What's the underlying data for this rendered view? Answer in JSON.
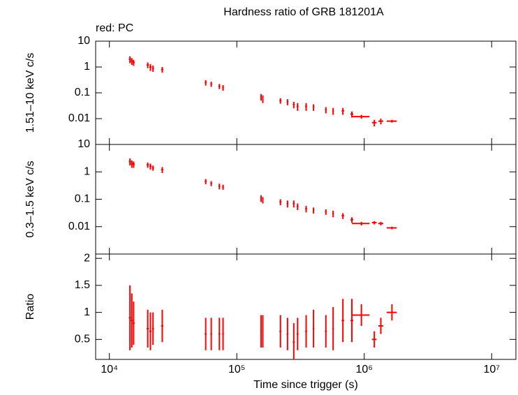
{
  "chart_data": [
    {
      "type": "scatter",
      "title": "Hardness ratio of GRB 181201A",
      "annotation": "red: PC",
      "ylabel": "1.51–10 keV c/s",
      "log_x": true,
      "log_y": true,
      "ylim": [
        0.001,
        10
      ],
      "yticks": [
        0.01,
        0.1,
        1,
        10
      ],
      "series": [
        {
          "color": "#ff0000",
          "x": [
            14500,
            15000,
            15500,
            20000,
            21000,
            22000,
            26000,
            57000,
            63000,
            73000,
            78000,
            155000,
            160000,
            220000,
            250000,
            280000,
            300000,
            350000,
            400000,
            500000,
            570000,
            680000,
            800000,
            950000,
            1200000,
            1350000,
            1650000
          ],
          "xerr": [
            300,
            300,
            300,
            400,
            400,
            400,
            500,
            1000,
            1000,
            1200,
            1200,
            2000,
            2000,
            4000,
            4000,
            5000,
            5000,
            6000,
            6000,
            8000,
            8000,
            15000,
            20000,
            150000,
            50000,
            60000,
            150000
          ],
          "values": [
            2.0,
            1.7,
            1.5,
            1.2,
            1.0,
            0.9,
            0.8,
            0.25,
            0.22,
            0.18,
            0.16,
            0.07,
            0.06,
            0.05,
            0.045,
            0.035,
            0.03,
            0.03,
            0.028,
            0.022,
            0.02,
            0.02,
            0.015,
            0.012,
            0.007,
            0.008,
            0.008
          ],
          "errors": [
            0.6,
            0.5,
            0.4,
            0.3,
            0.3,
            0.25,
            0.2,
            0.06,
            0.05,
            0.04,
            0.04,
            0.02,
            0.02,
            0.012,
            0.012,
            0.01,
            0.01,
            0.01,
            0.008,
            0.006,
            0.006,
            0.006,
            0.004,
            0.002,
            0.002,
            0.002,
            0.001
          ]
        }
      ]
    },
    {
      "type": "scatter",
      "ylabel": "0.3–1.5 keV c/s",
      "log_x": true,
      "log_y": true,
      "ylim": [
        0.001,
        10
      ],
      "yticks": [
        0.01,
        0.1,
        1,
        10
      ],
      "series": [
        {
          "color": "#ff0000",
          "x": [
            14500,
            15000,
            15500,
            20000,
            21000,
            22000,
            26000,
            57000,
            63000,
            73000,
            78000,
            155000,
            160000,
            220000,
            250000,
            280000,
            300000,
            350000,
            400000,
            500000,
            570000,
            680000,
            800000,
            950000,
            1200000,
            1350000,
            1650000
          ],
          "xerr": [
            300,
            300,
            300,
            400,
            400,
            400,
            500,
            1000,
            1000,
            1200,
            1200,
            2000,
            2000,
            4000,
            4000,
            5000,
            5000,
            6000,
            6000,
            8000,
            8000,
            15000,
            20000,
            150000,
            50000,
            60000,
            150000
          ],
          "values": [
            2.4,
            2.0,
            1.9,
            1.8,
            1.6,
            1.4,
            1.2,
            0.45,
            0.38,
            0.3,
            0.28,
            0.11,
            0.095,
            0.08,
            0.07,
            0.07,
            0.055,
            0.045,
            0.04,
            0.035,
            0.03,
            0.025,
            0.018,
            0.013,
            0.014,
            0.013,
            0.009
          ],
          "errors": [
            0.7,
            0.6,
            0.5,
            0.4,
            0.4,
            0.3,
            0.3,
            0.1,
            0.08,
            0.07,
            0.06,
            0.03,
            0.025,
            0.02,
            0.02,
            0.02,
            0.015,
            0.012,
            0.01,
            0.008,
            0.008,
            0.006,
            0.004,
            0.002,
            0.002,
            0.002,
            0.001
          ]
        }
      ]
    },
    {
      "type": "scatter",
      "ylabel": "Ratio",
      "xlabel": "Time since trigger (s)",
      "log_x": true,
      "log_y": false,
      "xlim": [
        7800,
        15500000
      ],
      "xticks": [
        {
          "value": 10000,
          "label": "10⁴"
        },
        {
          "value": 100000,
          "label": "10⁵"
        },
        {
          "value": 1000000,
          "label": "10⁶"
        },
        {
          "value": 10000000,
          "label": "10⁷"
        }
      ],
      "ylim": [
        0.13,
        2.08
      ],
      "yticks": [
        0.5,
        1,
        1.5,
        2
      ],
      "series": [
        {
          "color": "#ff0000",
          "x": [
            14500,
            15000,
            15500,
            20000,
            21000,
            22000,
            26000,
            57000,
            63000,
            73000,
            78000,
            155000,
            160000,
            220000,
            250000,
            280000,
            300000,
            350000,
            400000,
            500000,
            570000,
            680000,
            800000,
            950000,
            1200000,
            1350000,
            1650000
          ],
          "xerr": [
            300,
            300,
            300,
            400,
            400,
            400,
            500,
            1000,
            1000,
            1200,
            1200,
            2000,
            2000,
            4000,
            4000,
            5000,
            5000,
            6000,
            6000,
            8000,
            8000,
            15000,
            20000,
            150000,
            50000,
            60000,
            150000
          ],
          "values": [
            0.9,
            0.85,
            0.8,
            0.7,
            0.65,
            0.7,
            0.75,
            0.6,
            0.6,
            0.6,
            0.6,
            0.65,
            0.65,
            0.65,
            0.6,
            0.45,
            0.6,
            0.65,
            0.7,
            0.65,
            0.7,
            0.85,
            0.85,
            0.95,
            0.5,
            0.75,
            1.0
          ],
          "errors": [
            0.6,
            0.5,
            0.4,
            0.35,
            0.35,
            0.3,
            0.3,
            0.3,
            0.3,
            0.3,
            0.3,
            0.3,
            0.3,
            0.3,
            0.3,
            0.35,
            0.3,
            0.3,
            0.35,
            0.3,
            0.4,
            0.4,
            0.4,
            0.2,
            0.15,
            0.15,
            0.15
          ]
        }
      ]
    }
  ]
}
